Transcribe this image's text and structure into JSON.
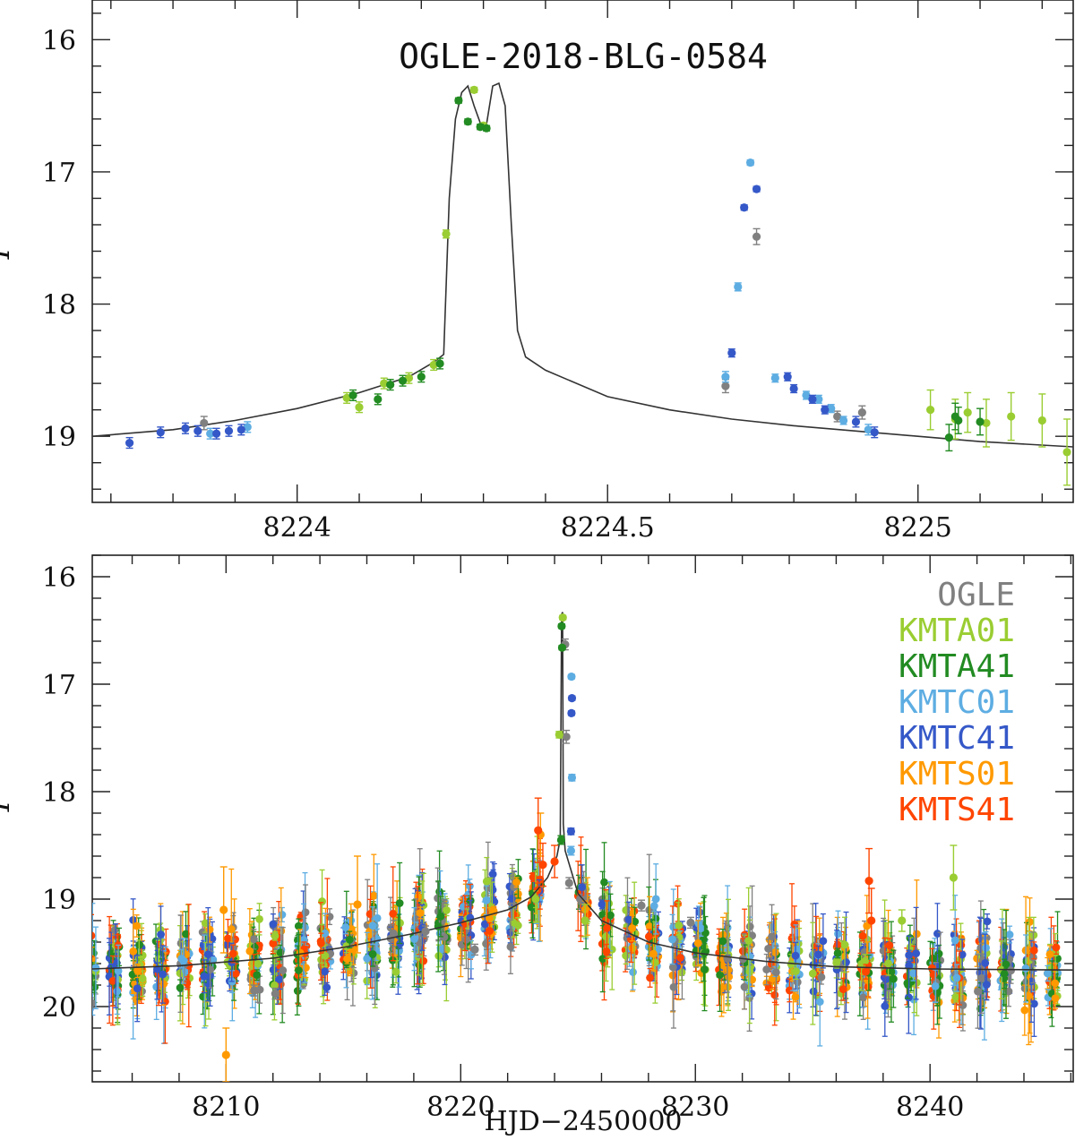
{
  "chart_data": [
    {
      "type": "scatter",
      "panel": "top (zoom on anomaly)",
      "title": "OGLE-2018-BLG-0584",
      "xlabel": "",
      "ylabel": "I",
      "xlim": [
        8223.67,
        8225.25
      ],
      "ylim": [
        19.5,
        15.7
      ],
      "y_inverted": true,
      "xticks_labeled": [
        8224,
        8224.5,
        8225
      ],
      "yticks_labeled": [
        16,
        17,
        18,
        19
      ],
      "model_curve": {
        "name": "model",
        "color": "#333333",
        "x": [
          8223.67,
          8223.8,
          8223.9,
          8224.0,
          8224.1,
          8224.18,
          8224.22,
          8224.236,
          8224.245,
          8224.255,
          8224.265,
          8224.275,
          8224.285,
          8224.295,
          8224.305,
          8224.315,
          8224.325,
          8224.335,
          8224.345,
          8224.355,
          8224.368,
          8224.4,
          8224.5,
          8224.6,
          8224.7,
          8224.8,
          8224.9,
          8225.0,
          8225.1,
          8225.25
        ],
        "y": [
          19.0,
          18.95,
          18.88,
          18.79,
          18.67,
          18.55,
          18.44,
          18.38,
          17.2,
          16.6,
          16.4,
          16.35,
          16.5,
          16.63,
          16.64,
          16.35,
          16.33,
          16.5,
          17.4,
          18.2,
          18.4,
          18.5,
          18.7,
          18.8,
          18.87,
          18.92,
          18.96,
          19.0,
          19.04,
          19.08
        ]
      },
      "series": [
        {
          "name": "OGLE",
          "color": "#808080",
          "x": [
            8223.85,
            8224.69,
            8224.74,
            8224.87,
            8224.91
          ],
          "y": [
            18.9,
            18.62,
            17.49,
            18.85,
            18.82
          ],
          "err": [
            0.05,
            0.05,
            0.06,
            0.04,
            0.05
          ]
        },
        {
          "name": "KMTA01",
          "color": "#9ACD32",
          "x": [
            8224.08,
            8224.1,
            8224.14,
            8224.18,
            8224.22,
            8224.24,
            8224.285,
            8224.3,
            8225.02,
            8225.06,
            8225.08,
            8225.11,
            8225.15,
            8225.2,
            8225.24
          ],
          "y": [
            18.71,
            18.78,
            18.6,
            18.56,
            18.46,
            17.47,
            16.38,
            16.65,
            18.8,
            18.87,
            18.82,
            18.9,
            18.85,
            18.88,
            19.12
          ],
          "err": [
            0.04,
            0.04,
            0.04,
            0.04,
            0.04,
            0.03,
            0.02,
            0.02,
            0.15,
            0.15,
            0.15,
            0.18,
            0.18,
            0.2,
            0.25
          ]
        },
        {
          "name": "KMTA41",
          "color": "#228B22",
          "x": [
            8224.09,
            8224.13,
            8224.15,
            8224.17,
            8224.2,
            8224.23,
            8224.26,
            8224.275,
            8224.295,
            8224.305,
            8225.05,
            8225.06,
            8225.065,
            8225.1
          ],
          "y": [
            18.69,
            18.72,
            18.61,
            18.58,
            18.55,
            18.45,
            16.46,
            16.62,
            16.66,
            16.67,
            19.01,
            18.85,
            18.88,
            18.89
          ],
          "err": [
            0.04,
            0.04,
            0.04,
            0.04,
            0.04,
            0.04,
            0.02,
            0.02,
            0.02,
            0.02,
            0.1,
            0.1,
            0.1,
            0.1
          ]
        },
        {
          "name": "KMTC01",
          "color": "#5DADE2",
          "x": [
            8223.86,
            8223.92,
            8224.69,
            8224.71,
            8224.73,
            8224.77,
            8224.82,
            8224.84,
            8224.86,
            8224.88,
            8224.92
          ],
          "y": [
            18.98,
            18.93,
            18.55,
            17.87,
            16.93,
            18.56,
            18.69,
            18.72,
            18.79,
            18.88,
            18.95
          ],
          "err": [
            0.04,
            0.04,
            0.04,
            0.03,
            0.02,
            0.03,
            0.03,
            0.03,
            0.03,
            0.03,
            0.04
          ]
        },
        {
          "name": "KMTC41",
          "color": "#3558C8",
          "x": [
            8223.73,
            8223.78,
            8223.82,
            8223.84,
            8223.87,
            8223.89,
            8223.91,
            8224.7,
            8224.72,
            8224.74,
            8224.79,
            8224.8,
            8224.83,
            8224.85,
            8224.9,
            8224.93
          ],
          "y": [
            19.05,
            18.97,
            18.94,
            18.96,
            18.98,
            18.96,
            18.95,
            18.37,
            17.27,
            17.13,
            18.55,
            18.64,
            18.72,
            18.8,
            18.89,
            18.97
          ],
          "err": [
            0.04,
            0.04,
            0.04,
            0.04,
            0.04,
            0.04,
            0.04,
            0.03,
            0.02,
            0.02,
            0.03,
            0.03,
            0.03,
            0.03,
            0.04,
            0.04
          ]
        }
      ]
    },
    {
      "type": "scatter",
      "panel": "bottom (full season)",
      "title": "",
      "xlabel": "HJD−2450000",
      "ylabel": "I",
      "xlim": [
        8204.3,
        8246.1
      ],
      "ylim": [
        20.7,
        15.8
      ],
      "y_inverted": true,
      "xticks_labeled": [
        8210,
        8220,
        8230,
        8240
      ],
      "yticks_labeled": [
        16,
        17,
        18,
        19,
        20
      ],
      "legend": {
        "placement": "top-right",
        "entries": [
          {
            "label": "OGLE",
            "color": "#808080"
          },
          {
            "label": "KMTA01",
            "color": "#9ACD32"
          },
          {
            "label": "KMTA41",
            "color": "#228B22"
          },
          {
            "label": "KMTC01",
            "color": "#5DADE2"
          },
          {
            "label": "KMTC41",
            "color": "#3558C8"
          },
          {
            "label": "KMTS01",
            "color": "#FF9900"
          },
          {
            "label": "KMTS41",
            "color": "#FF4500"
          }
        ]
      },
      "model_curve": {
        "name": "model",
        "color": "#333333",
        "x": [
          8204.3,
          8208,
          8212,
          8215,
          8218,
          8220,
          8222,
          8223,
          8223.7,
          8224.1,
          8224.24,
          8224.3,
          8224.34,
          8224.37,
          8224.45,
          8225,
          8226,
          8228,
          8230,
          8233,
          8236,
          8240,
          8246.1
        ],
        "y": [
          19.65,
          19.62,
          19.55,
          19.45,
          19.32,
          19.22,
          19.1,
          18.98,
          18.8,
          18.6,
          18.44,
          16.35,
          16.33,
          18.3,
          18.55,
          18.95,
          19.2,
          19.4,
          19.5,
          19.58,
          19.63,
          19.65,
          19.66
        ]
      },
      "series": [
        {
          "name": "OGLE",
          "color": "#808080",
          "x": [
            8211.2,
            8212.1,
            8218.5,
            8220.6,
            8224.45,
            8224.5,
            8224.62,
            8227.7,
            8229.8
          ],
          "y": [
            19.85,
            19.88,
            19.3,
            19.47,
            16.63,
            17.49,
            18.85,
            19.06,
            19.22
          ],
          "err": [
            0.05,
            0.05,
            0.05,
            0.05,
            0.05,
            0.06,
            0.05,
            0.05,
            0.05
          ]
        },
        {
          "name": "KMTA01",
          "color": "#9ACD32",
          "x": [
            8224.2,
            8224.35,
            8225.3,
            8238.8,
            8241.0
          ],
          "y": [
            17.47,
            16.38,
            19.2,
            19.2,
            18.8
          ],
          "err": [
            0.03,
            0.02,
            0.15,
            0.1,
            0.3
          ]
        },
        {
          "name": "KMTA41",
          "color": "#228B22",
          "x": [
            8224.28,
            8224.3,
            8224.32
          ],
          "y": [
            18.45,
            16.46,
            16.66
          ],
          "err": [
            0.04,
            0.02,
            0.02
          ]
        },
        {
          "name": "KMTC01",
          "color": "#5DADE2",
          "x": [
            8224.72,
            8224.74,
            8224.7
          ],
          "y": [
            16.93,
            17.87,
            18.55
          ],
          "err": [
            0.02,
            0.03,
            0.04
          ]
        },
        {
          "name": "KMTC41",
          "color": "#3558C8",
          "x": [
            8224.7,
            8224.72,
            8224.74
          ],
          "y": [
            18.37,
            17.27,
            17.13
          ],
          "err": [
            0.03,
            0.02,
            0.02
          ]
        },
        {
          "name": "KMTS01",
          "color": "#FF9900",
          "x": [
            8209.9,
            8210.0,
            8215.6,
            8223.4
          ],
          "y": [
            19.1,
            20.45,
            19.05,
            18.4
          ],
          "err": [
            0.4,
            0.25,
            0.45,
            0.2
          ]
        },
        {
          "name": "KMTS41",
          "color": "#FF4500",
          "x": [
            8223.3,
            8223.5,
            8224.0,
            8237.4,
            8237.5
          ],
          "y": [
            18.36,
            18.68,
            18.65,
            18.83,
            19.2
          ],
          "err": [
            0.3,
            0.2,
            0.15,
            0.3,
            0.3
          ]
        }
      ],
      "baseline_cloud": {
        "note": "dense scatter of all KMT/OGLE baseline points around the model curve between 8204 and 8246",
        "seasons_start": 8204.5,
        "seasons_end": 8245.9,
        "season_cycle_days": 1.0,
        "scatter_I": 0.15
      }
    }
  ]
}
